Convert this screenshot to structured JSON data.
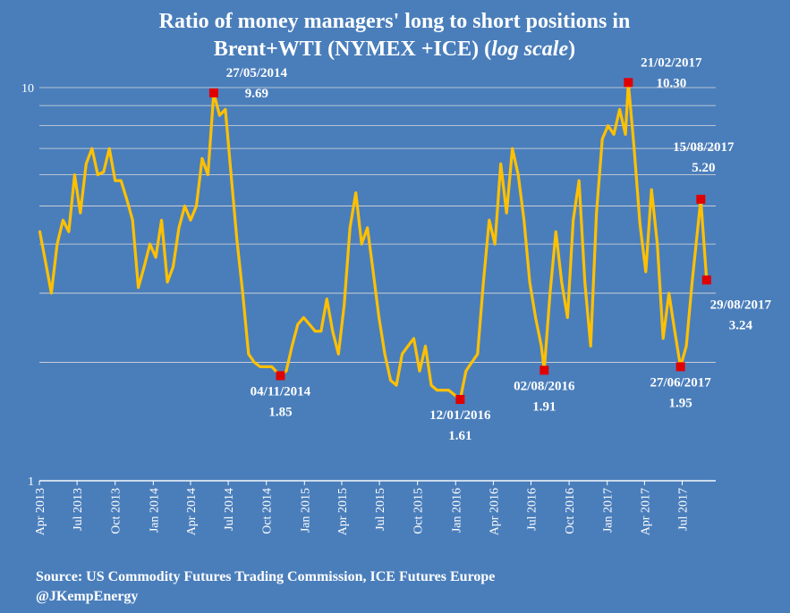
{
  "chart_data": {
    "type": "line",
    "title_line1": "Ratio of  money managers' long to short positions in",
    "title_line2_prefix": "Brent+WTI (NYMEX +ICE) (",
    "title_line2_italic": "log scale",
    "title_line2_suffix": ")",
    "yscale": "log",
    "ylim": [
      1,
      10
    ],
    "ytick_labels": [
      "1",
      "10"
    ],
    "grid": "horizontal",
    "xlim": [
      "2013-04-01",
      "2017-09-20"
    ],
    "xtick_labels": [
      {
        "label": "Apr 2013",
        "date": "2013-04-01"
      },
      {
        "label": "Jul 2013",
        "date": "2013-07-01"
      },
      {
        "label": "Oct 2013",
        "date": "2013-10-01"
      },
      {
        "label": "Jan 2014",
        "date": "2014-01-01"
      },
      {
        "label": "Apr 2014",
        "date": "2014-04-01"
      },
      {
        "label": "Jul 2014",
        "date": "2014-07-01"
      },
      {
        "label": "Oct 2014",
        "date": "2014-10-01"
      },
      {
        "label": "Jan 2015",
        "date": "2015-01-01"
      },
      {
        "label": "Apr 2015",
        "date": "2015-04-01"
      },
      {
        "label": "Jul 2015",
        "date": "2015-07-01"
      },
      {
        "label": "Oct 2015",
        "date": "2015-10-01"
      },
      {
        "label": "Jan 2016",
        "date": "2016-01-01"
      },
      {
        "label": "Apr 2016",
        "date": "2016-04-01"
      },
      {
        "label": "Jul 2016",
        "date": "2016-07-01"
      },
      {
        "label": "Oct 2016",
        "date": "2016-10-01"
      },
      {
        "label": "Jan 2017",
        "date": "2017-01-01"
      },
      {
        "label": "Apr 2017",
        "date": "2017-04-01"
      },
      {
        "label": "Jul 2017",
        "date": "2017-07-01"
      }
    ],
    "series": [
      {
        "color": "#ffc000",
        "points": [
          [
            "2013-04-02",
            4.3
          ],
          [
            "2013-04-16",
            3.6
          ],
          [
            "2013-04-30",
            3.0
          ],
          [
            "2013-05-14",
            4.0
          ],
          [
            "2013-05-28",
            4.6
          ],
          [
            "2013-06-11",
            4.3
          ],
          [
            "2013-06-25",
            6.0
          ],
          [
            "2013-07-09",
            4.8
          ],
          [
            "2013-07-23",
            6.4
          ],
          [
            "2013-08-06",
            7.0
          ],
          [
            "2013-08-20",
            6.0
          ],
          [
            "2013-09-03",
            6.1
          ],
          [
            "2013-09-17",
            7.0
          ],
          [
            "2013-10-01",
            5.8
          ],
          [
            "2013-10-15",
            5.8
          ],
          [
            "2013-10-29",
            5.2
          ],
          [
            "2013-11-12",
            4.6
          ],
          [
            "2013-11-26",
            3.1
          ],
          [
            "2013-12-10",
            3.5
          ],
          [
            "2013-12-24",
            4.0
          ],
          [
            "2014-01-07",
            3.7
          ],
          [
            "2014-01-21",
            4.6
          ],
          [
            "2014-02-04",
            3.2
          ],
          [
            "2014-02-18",
            3.5
          ],
          [
            "2014-03-04",
            4.4
          ],
          [
            "2014-03-18",
            5.0
          ],
          [
            "2014-04-01",
            4.6
          ],
          [
            "2014-04-15",
            5.0
          ],
          [
            "2014-04-29",
            6.6
          ],
          [
            "2014-05-13",
            6.0
          ],
          [
            "2014-05-27",
            9.69
          ],
          [
            "2014-06-10",
            8.5
          ],
          [
            "2014-06-24",
            8.8
          ],
          [
            "2014-07-08",
            6.0
          ],
          [
            "2014-07-22",
            4.1
          ],
          [
            "2014-08-05",
            3.0
          ],
          [
            "2014-08-19",
            2.1
          ],
          [
            "2014-09-02",
            2.0
          ],
          [
            "2014-09-16",
            1.95
          ],
          [
            "2014-09-30",
            1.95
          ],
          [
            "2014-10-14",
            1.95
          ],
          [
            "2014-11-04",
            1.85
          ],
          [
            "2014-11-18",
            1.9
          ],
          [
            "2014-12-02",
            2.2
          ],
          [
            "2014-12-16",
            2.5
          ],
          [
            "2014-12-30",
            2.6
          ],
          [
            "2015-01-13",
            2.5
          ],
          [
            "2015-01-27",
            2.4
          ],
          [
            "2015-02-10",
            2.4
          ],
          [
            "2015-02-24",
            2.9
          ],
          [
            "2015-03-10",
            2.4
          ],
          [
            "2015-03-24",
            2.1
          ],
          [
            "2015-04-07",
            2.8
          ],
          [
            "2015-04-21",
            4.4
          ],
          [
            "2015-05-05",
            5.4
          ],
          [
            "2015-05-19",
            4.0
          ],
          [
            "2015-06-02",
            4.4
          ],
          [
            "2015-06-16",
            3.4
          ],
          [
            "2015-06-30",
            2.6
          ],
          [
            "2015-07-14",
            2.1
          ],
          [
            "2015-07-28",
            1.8
          ],
          [
            "2015-08-11",
            1.75
          ],
          [
            "2015-08-25",
            2.1
          ],
          [
            "2015-09-08",
            2.2
          ],
          [
            "2015-09-22",
            2.3
          ],
          [
            "2015-10-06",
            1.9
          ],
          [
            "2015-10-20",
            2.2
          ],
          [
            "2015-11-03",
            1.75
          ],
          [
            "2015-11-17",
            1.7
          ],
          [
            "2015-12-01",
            1.7
          ],
          [
            "2015-12-15",
            1.7
          ],
          [
            "2016-01-12",
            1.61
          ],
          [
            "2016-01-26",
            1.9
          ],
          [
            "2016-02-09",
            2.0
          ],
          [
            "2016-02-23",
            2.1
          ],
          [
            "2016-03-08",
            3.2
          ],
          [
            "2016-03-22",
            4.6
          ],
          [
            "2016-04-05",
            4.0
          ],
          [
            "2016-04-19",
            6.4
          ],
          [
            "2016-05-03",
            4.8
          ],
          [
            "2016-05-17",
            7.0
          ],
          [
            "2016-05-31",
            6.0
          ],
          [
            "2016-06-14",
            4.6
          ],
          [
            "2016-06-28",
            3.2
          ],
          [
            "2016-07-12",
            2.6
          ],
          [
            "2016-07-26",
            2.2
          ],
          [
            "2016-08-02",
            1.91
          ],
          [
            "2016-08-16",
            3.0
          ],
          [
            "2016-08-30",
            4.3
          ],
          [
            "2016-09-13",
            3.2
          ],
          [
            "2016-09-27",
            2.6
          ],
          [
            "2016-10-11",
            4.6
          ],
          [
            "2016-10-25",
            5.8
          ],
          [
            "2016-11-08",
            3.2
          ],
          [
            "2016-11-22",
            2.2
          ],
          [
            "2016-12-06",
            4.8
          ],
          [
            "2016-12-20",
            7.4
          ],
          [
            "2017-01-03",
            8.0
          ],
          [
            "2017-01-17",
            7.6
          ],
          [
            "2017-01-31",
            8.8
          ],
          [
            "2017-02-14",
            7.6
          ],
          [
            "2017-02-21",
            10.3
          ],
          [
            "2017-03-07",
            7.0
          ],
          [
            "2017-03-21",
            4.5
          ],
          [
            "2017-04-04",
            3.4
          ],
          [
            "2017-04-18",
            5.5
          ],
          [
            "2017-05-02",
            4.0
          ],
          [
            "2017-05-16",
            2.3
          ],
          [
            "2017-05-30",
            3.0
          ],
          [
            "2017-06-13",
            2.4
          ],
          [
            "2017-06-27",
            1.95
          ],
          [
            "2017-07-11",
            2.2
          ],
          [
            "2017-07-25",
            3.2
          ],
          [
            "2017-08-15",
            5.2
          ],
          [
            "2017-08-29",
            3.24
          ]
        ]
      }
    ],
    "annotations": [
      {
        "date_label": "27/05/2014",
        "value_label": "9.69",
        "date": "2014-05-27",
        "value": 9.69,
        "place": "above-right"
      },
      {
        "date_label": "04/11/2014",
        "value_label": "1.85",
        "date": "2014-11-04",
        "value": 1.85,
        "place": "below"
      },
      {
        "date_label": "12/01/2016",
        "value_label": "1.61",
        "date": "2016-01-12",
        "value": 1.61,
        "place": "below"
      },
      {
        "date_label": "02/08/2016",
        "value_label": "1.91",
        "date": "2016-08-02",
        "value": 1.91,
        "place": "below"
      },
      {
        "date_label": "21/02/2017",
        "value_label": "10.30",
        "date": "2017-02-21",
        "value": 10.3,
        "place": "above-right"
      },
      {
        "date_label": "27/06/2017",
        "value_label": "1.95",
        "date": "2017-06-27",
        "value": 1.95,
        "place": "below"
      },
      {
        "date_label": "15/08/2017",
        "value_label": "5.20",
        "date": "2017-08-15",
        "value": 5.2,
        "place": "above"
      },
      {
        "date_label": "29/08/2017",
        "value_label": "3.24",
        "date": "2017-08-29",
        "value": 3.24,
        "place": "below-right"
      }
    ],
    "marker_color": "#e00000",
    "source_line1": "Source: US Commodity Futures Trading Commission, ICE Futures Europe",
    "source_line2": "@JKempEnergy"
  }
}
